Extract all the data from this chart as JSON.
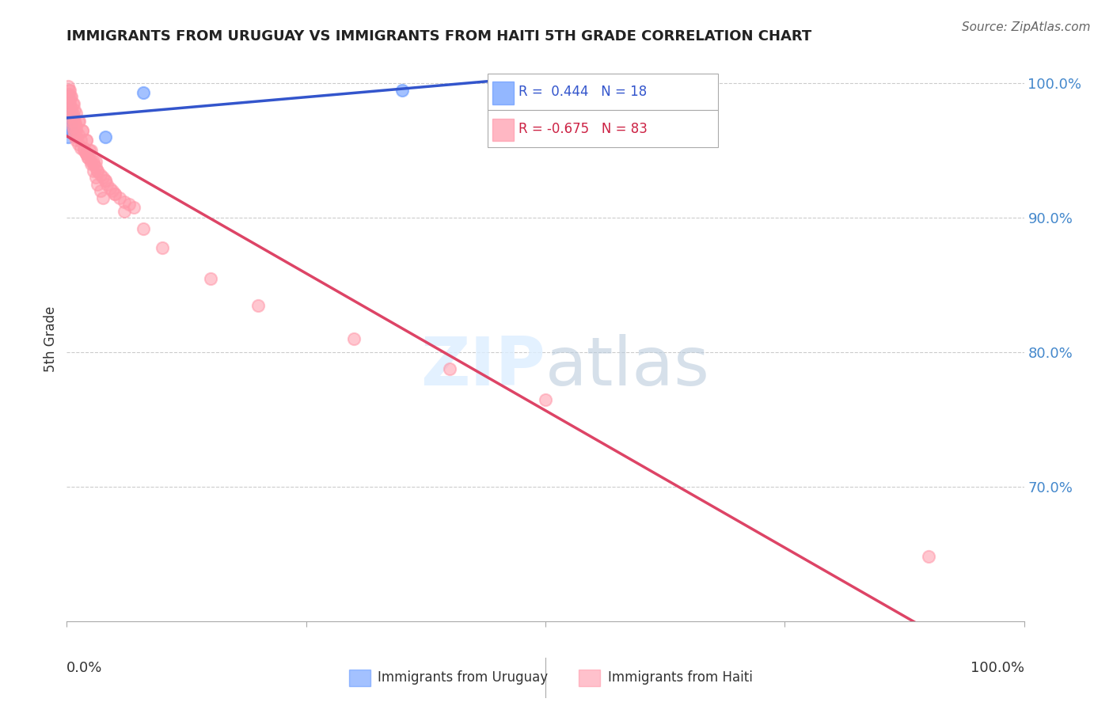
{
  "title": "IMMIGRANTS FROM URUGUAY VS IMMIGRANTS FROM HAITI 5TH GRADE CORRELATION CHART",
  "source": "Source: ZipAtlas.com",
  "ylabel": "5th Grade",
  "xlim": [
    0,
    1.0
  ],
  "ylim": [
    0.6,
    1.02
  ],
  "yticks": [
    0.7,
    0.8,
    0.9,
    1.0
  ],
  "ytick_labels": [
    "70.0%",
    "80.0%",
    "90.0%",
    "100.0%"
  ],
  "uruguay_color": "#6699ff",
  "haiti_color": "#ff99aa",
  "uruguay_line_color": "#3355cc",
  "haiti_line_color": "#dd4466",
  "uruguay_scatter": {
    "x": [
      0.001,
      0.002,
      0.003,
      0.001,
      0.004,
      0.002,
      0.003,
      0.001,
      0.005,
      0.002,
      0.001,
      0.003,
      0.002,
      0.004,
      0.35,
      0.001,
      0.04,
      0.08
    ],
    "y": [
      0.98,
      0.975,
      0.97,
      0.985,
      0.968,
      0.972,
      0.978,
      0.99,
      0.965,
      0.98,
      0.988,
      0.965,
      0.975,
      0.97,
      0.995,
      0.96,
      0.96,
      0.993
    ]
  },
  "haiti_scatter": {
    "x": [
      0.001,
      0.002,
      0.003,
      0.004,
      0.005,
      0.006,
      0.007,
      0.008,
      0.009,
      0.01,
      0.012,
      0.015,
      0.018,
      0.02,
      0.022,
      0.025,
      0.028,
      0.03,
      0.032,
      0.035,
      0.038,
      0.04,
      0.042,
      0.045,
      0.048,
      0.05,
      0.055,
      0.06,
      0.065,
      0.07,
      0.002,
      0.003,
      0.004,
      0.005,
      0.006,
      0.007,
      0.008,
      0.009,
      0.01,
      0.012,
      0.015,
      0.018,
      0.02,
      0.022,
      0.025,
      0.028,
      0.03,
      0.032,
      0.035,
      0.038,
      0.003,
      0.005,
      0.007,
      0.01,
      0.013,
      0.016,
      0.02,
      0.024,
      0.028,
      0.032,
      0.001,
      0.002,
      0.004,
      0.006,
      0.008,
      0.012,
      0.016,
      0.02,
      0.025,
      0.03,
      0.04,
      0.05,
      0.06,
      0.08,
      0.1,
      0.15,
      0.2,
      0.3,
      0.4,
      0.5,
      0.01,
      0.02,
      0.9
    ],
    "y": [
      0.99,
      0.985,
      0.98,
      0.975,
      0.972,
      0.968,
      0.965,
      0.962,
      0.96,
      0.958,
      0.955,
      0.952,
      0.95,
      0.948,
      0.945,
      0.942,
      0.94,
      0.938,
      0.935,
      0.932,
      0.93,
      0.928,
      0.925,
      0.922,
      0.92,
      0.918,
      0.915,
      0.912,
      0.91,
      0.908,
      0.992,
      0.988,
      0.984,
      0.98,
      0.978,
      0.975,
      0.972,
      0.97,
      0.968,
      0.962,
      0.958,
      0.952,
      0.948,
      0.945,
      0.94,
      0.935,
      0.93,
      0.925,
      0.92,
      0.915,
      0.995,
      0.99,
      0.985,
      0.978,
      0.972,
      0.965,
      0.958,
      0.95,
      0.942,
      0.935,
      0.998,
      0.995,
      0.99,
      0.985,
      0.98,
      0.972,
      0.965,
      0.958,
      0.95,
      0.942,
      0.928,
      0.918,
      0.905,
      0.892,
      0.878,
      0.855,
      0.835,
      0.81,
      0.788,
      0.765,
      0.965,
      0.948,
      0.648
    ]
  }
}
